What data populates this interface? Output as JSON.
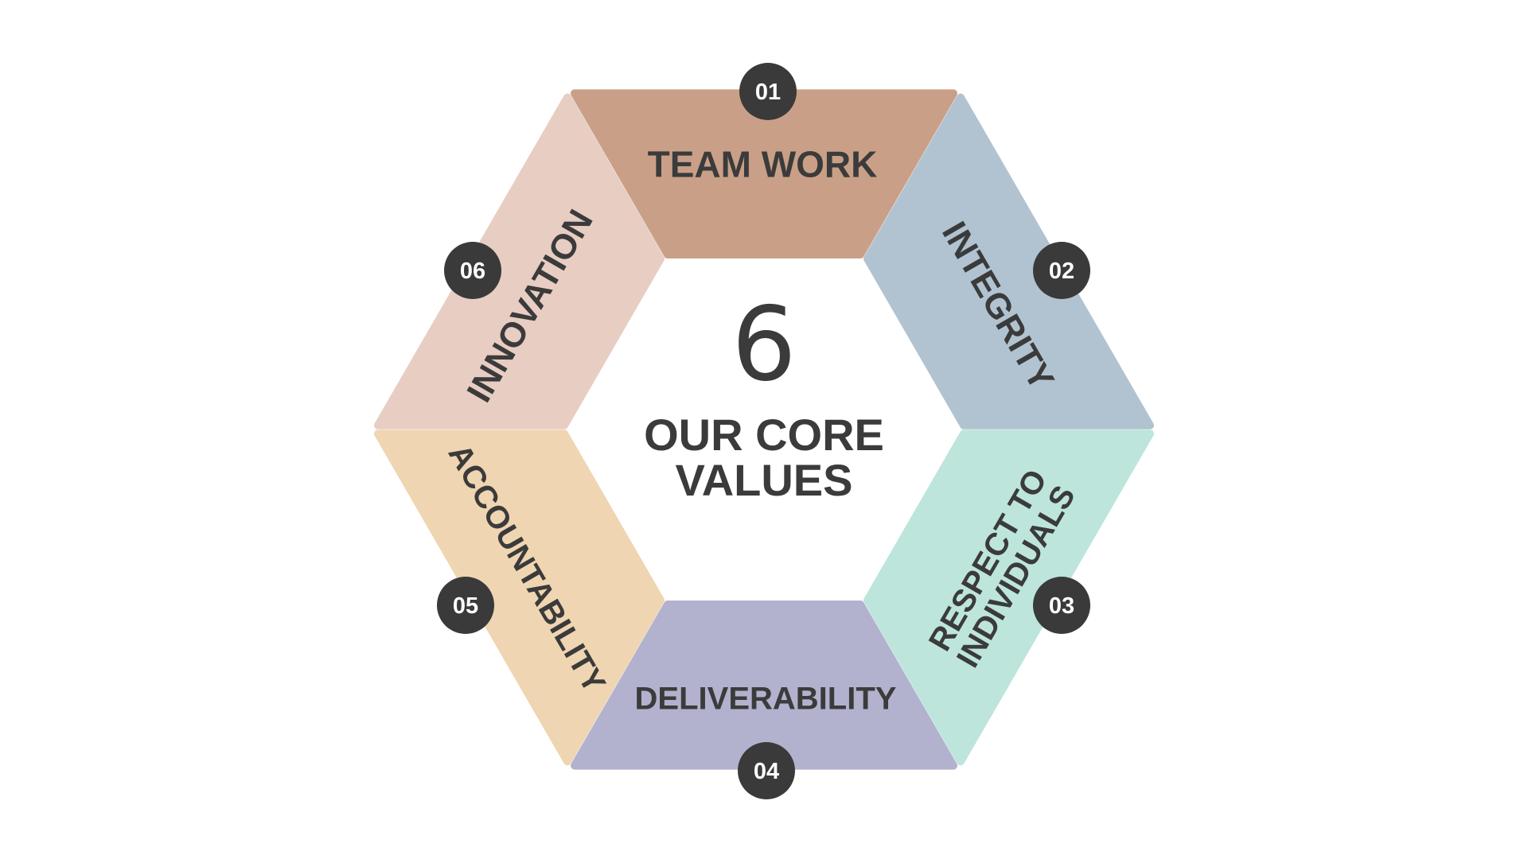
{
  "center": {
    "number": "6",
    "title_line1": "OUR CORE",
    "title_line2": "VALUES"
  },
  "values": [
    {
      "number": "01",
      "label_lines": [
        "TEAM WORK"
      ],
      "color": "#c9a087"
    },
    {
      "number": "02",
      "label_lines": [
        "INTEGRITY"
      ],
      "color": "#b1c3d0"
    },
    {
      "number": "03",
      "label_lines": [
        "RESPECT TO",
        "INDIVIDUALS"
      ],
      "color": "#bde5db"
    },
    {
      "number": "04",
      "label_lines": [
        "DELIVERABILITY"
      ],
      "color": "#b2b2cf"
    },
    {
      "number": "05",
      "label_lines": [
        "ACCOUNTABILITY"
      ],
      "color": "#efd5b1"
    },
    {
      "number": "06",
      "label_lines": [
        "INNOVATION"
      ],
      "color": "#e8cdc3"
    }
  ],
  "colors": {
    "badge": "#3a3a3a",
    "text": "#3b3b3b",
    "background": "#ffffff"
  }
}
